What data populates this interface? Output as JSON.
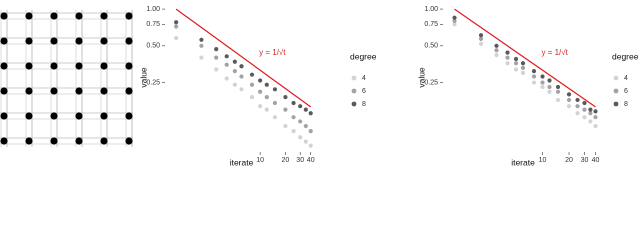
{
  "chart_data": [
    {
      "type": "scatter",
      "log_x": true,
      "log_y": true,
      "x_label": "iterate",
      "y_label": "value",
      "x": [
        1,
        2,
        3,
        4,
        5,
        6,
        8,
        10,
        12,
        15,
        20,
        25,
        30,
        35,
        40
      ],
      "xlim": [
        0.8,
        45
      ],
      "xticks": [
        10,
        20,
        30,
        40
      ],
      "ylim": [
        0.07,
        1.08
      ],
      "yticks": [
        0.25,
        {
          "value": 0.5,
          "label": "0.50"
        },
        {
          "value": 0.75,
          "label": "0.75"
        },
        {
          "value": 1,
          "label": "1.00"
        }
      ],
      "legend_title": "degree",
      "series": [
        {
          "name": "4",
          "color": "#d3d3d3",
          "values": [
            0.58,
            0.4,
            0.32,
            0.27,
            0.24,
            0.22,
            0.19,
            0.16,
            0.15,
            0.13,
            0.11,
            0.1,
            0.089,
            0.082,
            0.076
          ]
        },
        {
          "name": "6",
          "color": "#a3a3a3",
          "values": [
            0.72,
            0.5,
            0.4,
            0.35,
            0.31,
            0.28,
            0.24,
            0.21,
            0.19,
            0.17,
            0.15,
            0.13,
            0.12,
            0.11,
            0.1
          ]
        },
        {
          "name": "8",
          "color": "#5a5a5a",
          "values": [
            0.78,
            0.56,
            0.47,
            0.41,
            0.37,
            0.34,
            0.29,
            0.26,
            0.24,
            0.22,
            0.19,
            0.17,
            0.16,
            0.15,
            0.14
          ]
        }
      ],
      "reference_line": {
        "color": "#e31a1c",
        "x": [
          1,
          40
        ],
        "values": [
          1,
          0.158
        ]
      },
      "annotation": "y = 1/√t"
    },
    {
      "type": "scatter",
      "log_x": true,
      "log_y": true,
      "x_label": "iterate",
      "y_label": "value",
      "x": [
        1,
        2,
        3,
        4,
        5,
        6,
        8,
        10,
        12,
        15,
        20,
        25,
        30,
        35,
        40
      ],
      "xlim": [
        0.8,
        45
      ],
      "xticks": [
        10,
        20,
        30,
        40
      ],
      "ylim": [
        0.07,
        1.08
      ],
      "yticks": [
        0.25,
        {
          "value": 0.5,
          "label": "0.50"
        },
        {
          "value": 0.75,
          "label": "0.75"
        },
        {
          "value": 1,
          "label": "1.00"
        }
      ],
      "legend_title": "degree",
      "series": [
        {
          "name": "4",
          "color": "#d3d3d3",
          "values": [
            0.75,
            0.52,
            0.42,
            0.36,
            0.32,
            0.3,
            0.25,
            0.23,
            0.21,
            0.18,
            0.16,
            0.14,
            0.13,
            0.12,
            0.11
          ]
        },
        {
          "name": "6",
          "color": "#a3a3a3",
          "values": [
            0.8,
            0.57,
            0.46,
            0.4,
            0.36,
            0.33,
            0.28,
            0.25,
            0.23,
            0.21,
            0.18,
            0.16,
            0.15,
            0.14,
            0.13
          ]
        },
        {
          "name": "8",
          "color": "#5a5a5a",
          "values": [
            0.85,
            0.61,
            0.5,
            0.44,
            0.39,
            0.36,
            0.31,
            0.28,
            0.26,
            0.23,
            0.2,
            0.18,
            0.17,
            0.15,
            0.145
          ]
        }
      ],
      "reference_line": {
        "color": "#e31a1c",
        "x": [
          1,
          40
        ],
        "values": [
          1,
          0.158
        ]
      },
      "annotation": "y = 1/√t"
    }
  ]
}
